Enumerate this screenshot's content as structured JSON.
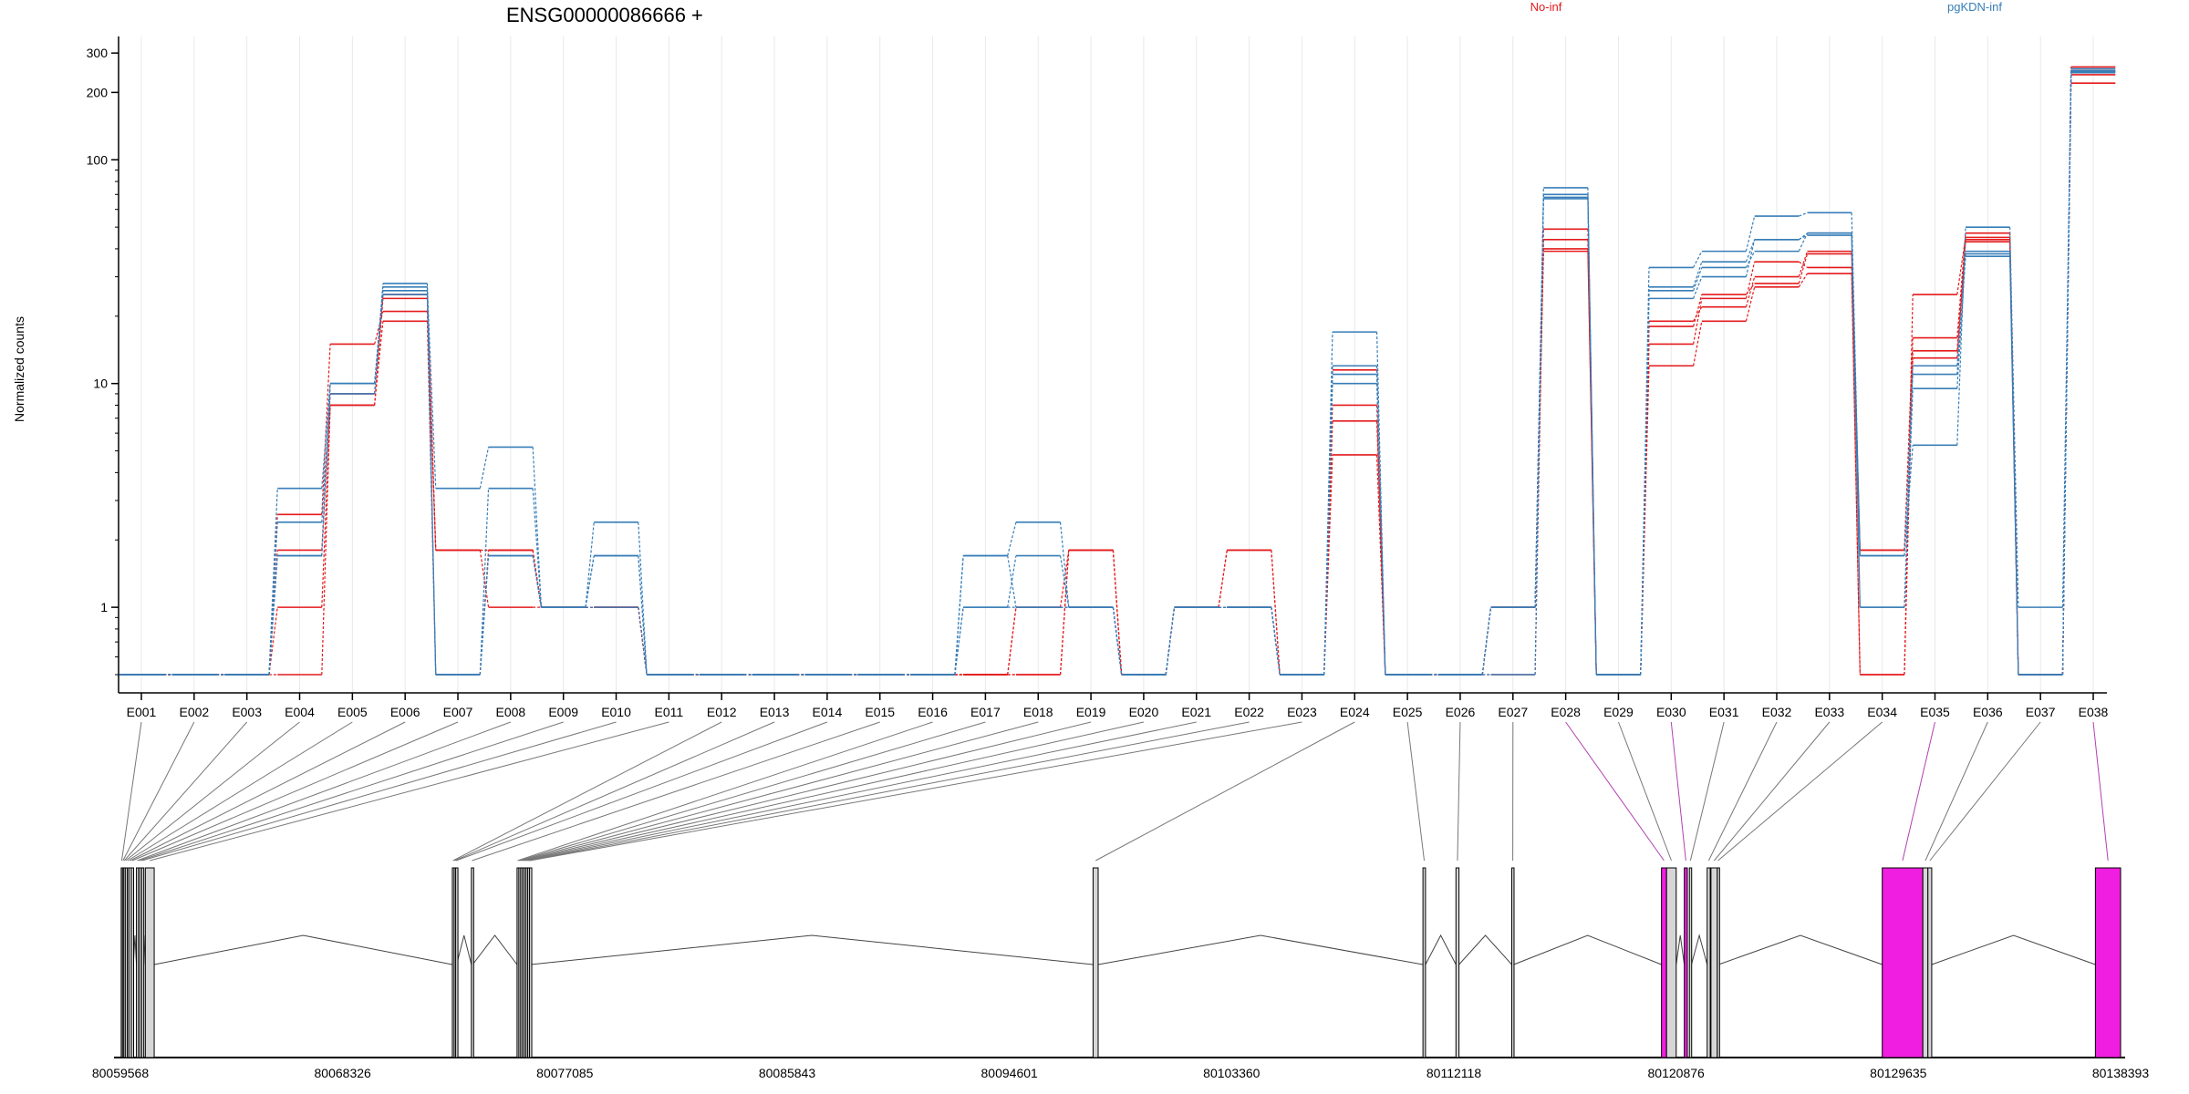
{
  "chart_data": {
    "type": "line",
    "title": "ENSG00000086666 +",
    "ylabel": "Normalized counts",
    "y_scale": "log",
    "ylim": [
      0.5,
      330
    ],
    "y_ticks": [
      {
        "value": 1,
        "label": "1"
      },
      {
        "value": 10,
        "label": "10"
      },
      {
        "value": 100,
        "label": "100"
      },
      {
        "value": 200,
        "label": "200"
      },
      {
        "value": 300,
        "label": "300"
      }
    ],
    "x_ticks": [
      "E001",
      "E002",
      "E003",
      "E004",
      "E005",
      "E006",
      "E007",
      "E008",
      "E009",
      "E010",
      "E011",
      "E012",
      "E013",
      "E014",
      "E015",
      "E016",
      "E017",
      "E018",
      "E019",
      "E020",
      "E021",
      "E022",
      "E023",
      "E024",
      "E025",
      "E026",
      "E027",
      "E028",
      "E029",
      "E030",
      "E031",
      "E032",
      "E033",
      "E034",
      "E035",
      "E036",
      "E037",
      "E038"
    ],
    "legend": [
      {
        "label": "No-inf",
        "color": "#e41a1c"
      },
      {
        "label": "pgKDN-inf",
        "color": "#377eb8"
      }
    ],
    "series": [
      {
        "group": "No-inf",
        "color": "#e41a1c",
        "values": [
          0,
          0,
          0,
          1.8,
          9.0,
          25,
          1.8,
          1.8,
          1.0,
          1.0,
          0,
          0,
          0,
          0,
          0,
          0,
          0,
          0,
          1.8,
          0,
          1.0,
          1.0,
          0,
          11.5,
          0,
          0,
          1.0,
          39,
          0,
          18,
          25,
          28,
          38,
          1.8,
          16,
          47,
          0,
          240
        ]
      },
      {
        "group": "No-inf",
        "color": "#e41a1c",
        "values": [
          0,
          0,
          0,
          2.6,
          15,
          21,
          1.8,
          1.0,
          1.0,
          1.0,
          0,
          0,
          0,
          0,
          0,
          0,
          0,
          1.0,
          1.0,
          0,
          1.0,
          1.8,
          0,
          6.8,
          0,
          0,
          0,
          49,
          0,
          15,
          24,
          35,
          33,
          0,
          25,
          45,
          0,
          260
        ]
      },
      {
        "group": "No-inf",
        "color": "#e41a1c",
        "values": [
          0,
          0,
          0,
          1.0,
          8.0,
          19,
          0,
          1.8,
          1.0,
          1.0,
          0,
          0,
          0,
          0,
          0,
          0,
          0,
          1.0,
          1.8,
          0,
          1.0,
          1.8,
          0,
          4.8,
          0,
          0,
          1.0,
          44,
          0,
          12,
          19,
          27,
          31,
          0,
          14,
          44,
          0,
          220
        ]
      },
      {
        "group": "No-inf",
        "color": "#e41a1c",
        "values": [
          0,
          0,
          0,
          0,
          8.0,
          24,
          1.8,
          1.8,
          1.0,
          1.0,
          0,
          0,
          0,
          0,
          0,
          0,
          0,
          0,
          1.8,
          0,
          1.0,
          1.0,
          0,
          8.0,
          0,
          0,
          1.0,
          40,
          0,
          19,
          22,
          30,
          39,
          1.8,
          13,
          43,
          0,
          250
        ]
      },
      {
        "group": "pgKDN-inf",
        "color": "#377eb8",
        "values": [
          0,
          0,
          0,
          3.4,
          10,
          27,
          3.4,
          5.2,
          1.0,
          2.4,
          0,
          0,
          0,
          0,
          0,
          0,
          1.7,
          2.4,
          1.0,
          0,
          1.0,
          1.0,
          0,
          17,
          0,
          0,
          0,
          75,
          0,
          33,
          39,
          56,
          58,
          1.7,
          5.3,
          50,
          1.0,
          255
        ]
      },
      {
        "group": "pgKDN-inf",
        "color": "#377eb8",
        "values": [
          0,
          0,
          0,
          1.7,
          10,
          26,
          0,
          3.4,
          1.0,
          1.7,
          0,
          0,
          0,
          0,
          0,
          0,
          1.0,
          1.7,
          1.0,
          0,
          1.0,
          1.0,
          0,
          11,
          0,
          0,
          1.0,
          70,
          0,
          26,
          33,
          39,
          47,
          1.7,
          11,
          39,
          0,
          250
        ]
      },
      {
        "group": "pgKDN-inf",
        "color": "#377eb8",
        "values": [
          0,
          0,
          0,
          2.4,
          9.0,
          28,
          0,
          1.7,
          1.0,
          1.7,
          0,
          0,
          0,
          0,
          0,
          0,
          1.7,
          1.0,
          1.0,
          0,
          1.0,
          1.0,
          0,
          12,
          0,
          0,
          1.0,
          67,
          0,
          27,
          35,
          44,
          47,
          1.0,
          12,
          37,
          0,
          245
        ]
      },
      {
        "group": "pgKDN-inf",
        "color": "#377eb8",
        "values": [
          0,
          0,
          0,
          1.7,
          10,
          25,
          0,
          1.7,
          1.0,
          1.0,
          0,
          0,
          0,
          0,
          0,
          0,
          1.0,
          1.0,
          1.0,
          0,
          1.0,
          1.0,
          0,
          10,
          0,
          0,
          1.0,
          68,
          0,
          24,
          30,
          44,
          46,
          1.0,
          9.5,
          38,
          0,
          248
        ]
      }
    ],
    "gene_model": {
      "coordinate_ticks": [
        "80059568",
        "80068326",
        "80077085",
        "80085843",
        "80094601",
        "80103360",
        "80112118",
        "80120876",
        "80129635",
        "80138393"
      ],
      "coord_min": 80059568,
      "coord_max": 80138393,
      "highlight_color": "#f01ee0",
      "exons": [
        {
          "id": "E001",
          "start": 80059600,
          "end": 80059640,
          "highlight": false
        },
        {
          "id": "E002",
          "start": 80059650,
          "end": 80059690,
          "highlight": false
        },
        {
          "id": "E003",
          "start": 80059700,
          "end": 80059740,
          "highlight": false
        },
        {
          "id": "E004",
          "start": 80059760,
          "end": 80059800,
          "highlight": false
        },
        {
          "id": "E005",
          "start": 80059840,
          "end": 80059880,
          "highlight": false
        },
        {
          "id": "E006",
          "start": 80059900,
          "end": 80060000,
          "highlight": false
        },
        {
          "id": "E007",
          "start": 80060000,
          "end": 80060080,
          "highlight": false
        },
        {
          "id": "E008",
          "start": 80060200,
          "end": 80060260,
          "highlight": false
        },
        {
          "id": "E009",
          "start": 80060300,
          "end": 80060340,
          "highlight": false
        },
        {
          "id": "E010",
          "start": 80060400,
          "end": 80060440,
          "highlight": false
        },
        {
          "id": "E011",
          "start": 80060550,
          "end": 80060900,
          "highlight": false
        },
        {
          "id": "E012",
          "start": 80072650,
          "end": 80072700,
          "highlight": false
        },
        {
          "id": "E013",
          "start": 80072720,
          "end": 80072760,
          "highlight": false
        },
        {
          "id": "E014",
          "start": 80072780,
          "end": 80072820,
          "highlight": false
        },
        {
          "id": "E015",
          "start": 80073400,
          "end": 80073450,
          "highlight": false
        },
        {
          "id": "E016",
          "start": 80075200,
          "end": 80075240,
          "highlight": false
        },
        {
          "id": "E017",
          "start": 80075270,
          "end": 80075310,
          "highlight": false
        },
        {
          "id": "E018",
          "start": 80075340,
          "end": 80075380,
          "highlight": false
        },
        {
          "id": "E019",
          "start": 80075410,
          "end": 80075450,
          "highlight": false
        },
        {
          "id": "E020",
          "start": 80075480,
          "end": 80075520,
          "highlight": false
        },
        {
          "id": "E021",
          "start": 80075550,
          "end": 80075590,
          "highlight": false
        },
        {
          "id": "E022",
          "start": 80075620,
          "end": 80075660,
          "highlight": false
        },
        {
          "id": "E023",
          "start": 80075690,
          "end": 80075730,
          "highlight": false
        },
        {
          "id": "E024",
          "start": 80097900,
          "end": 80098100,
          "highlight": false
        },
        {
          "id": "E025",
          "start": 80110900,
          "end": 80111000,
          "highlight": false
        },
        {
          "id": "E026",
          "start": 80112200,
          "end": 80112320,
          "highlight": false
        },
        {
          "id": "E027",
          "start": 80114400,
          "end": 80114480,
          "highlight": false
        },
        {
          "id": "E028",
          "start": 80120300,
          "end": 80120500,
          "highlight": true
        },
        {
          "id": "E029",
          "start": 80120500,
          "end": 80120880,
          "highlight": false
        },
        {
          "id": "E030",
          "start": 80121200,
          "end": 80121320,
          "highlight": true
        },
        {
          "id": "E031",
          "start": 80121400,
          "end": 80121480,
          "highlight": false
        },
        {
          "id": "E032",
          "start": 80122100,
          "end": 80122220,
          "highlight": false
        },
        {
          "id": "E033",
          "start": 80122250,
          "end": 80122500,
          "highlight": false
        },
        {
          "id": "E034",
          "start": 80122500,
          "end": 80122550,
          "highlight": false
        },
        {
          "id": "E035",
          "start": 80129000,
          "end": 80130600,
          "highlight": true
        },
        {
          "id": "E036",
          "start": 80130600,
          "end": 80130800,
          "highlight": false
        },
        {
          "id": "E037",
          "start": 80130800,
          "end": 80130950,
          "highlight": false
        },
        {
          "id": "E038",
          "start": 80137400,
          "end": 80138393,
          "highlight": true
        }
      ]
    }
  }
}
